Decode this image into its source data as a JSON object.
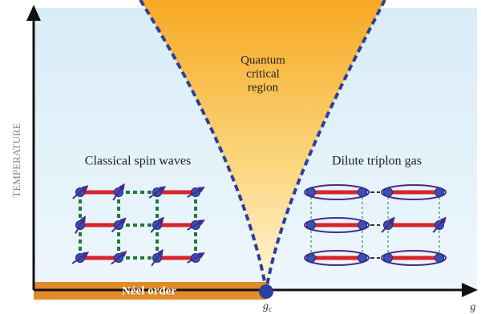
{
  "axes": {
    "y_label": "TEMPERATURE",
    "x_label": "g",
    "critical_point": {
      "base": "g",
      "subscript": "c"
    }
  },
  "regions": {
    "quantum_critical": [
      "Quantum",
      "critical",
      "region"
    ],
    "left": "Classical spin waves",
    "right": "Dilute triplon gas",
    "bottom": "Néel order"
  }
}
